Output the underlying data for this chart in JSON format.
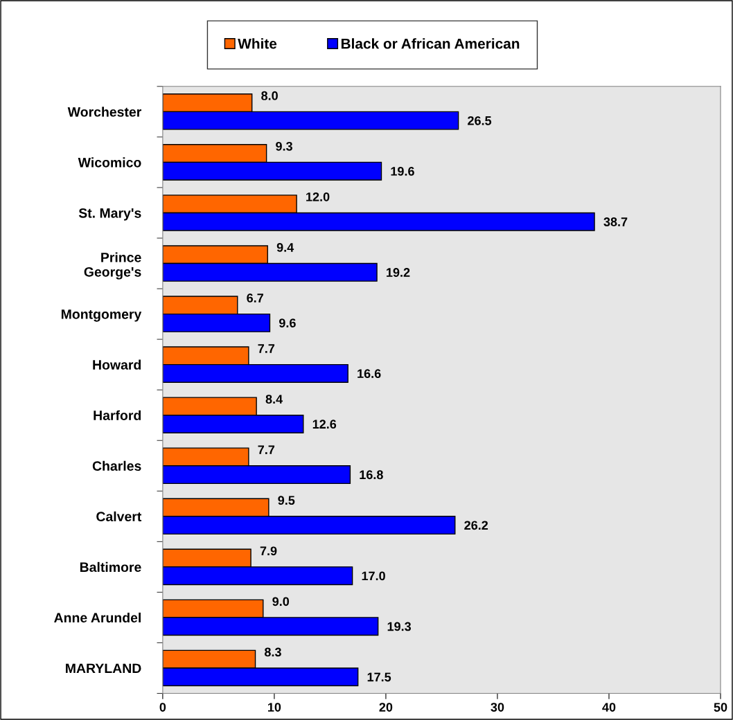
{
  "chart_data": {
    "type": "bar",
    "orientation": "horizontal",
    "categories": [
      "Worchester",
      "Wicomico",
      "St. Mary's",
      "Prince\nGeorge's",
      "Montgomery",
      "Howard",
      "Harford",
      "Charles",
      "Calvert",
      "Baltimore",
      "Anne Arundel",
      "MARYLAND"
    ],
    "series": [
      {
        "name": "White",
        "color": "#ff6600",
        "values": [
          8.0,
          9.3,
          12.0,
          9.4,
          6.7,
          7.7,
          8.4,
          7.7,
          9.5,
          7.9,
          9.0,
          8.3
        ],
        "value_labels": [
          "8.0",
          "9.3",
          "12.0",
          "9.4",
          "6.7",
          "7.7",
          "8.4",
          "7.7",
          "9.5",
          "7.9",
          "9.0",
          "8.3"
        ]
      },
      {
        "name": "Black or African American",
        "color": "#0000ff",
        "values": [
          26.5,
          19.6,
          38.7,
          19.2,
          9.6,
          16.6,
          12.6,
          16.8,
          26.2,
          17.0,
          19.3,
          17.5
        ],
        "value_labels": [
          "26.5",
          "19.6",
          "38.7",
          "19.2",
          "9.6",
          "16.6",
          "12.6",
          "16.8",
          "26.2",
          "17.0",
          "19.3",
          "17.5"
        ]
      }
    ],
    "xlim": [
      0,
      50
    ],
    "xticks": [
      0,
      10,
      20,
      30,
      40,
      50
    ],
    "legend": "top",
    "grid": false
  }
}
